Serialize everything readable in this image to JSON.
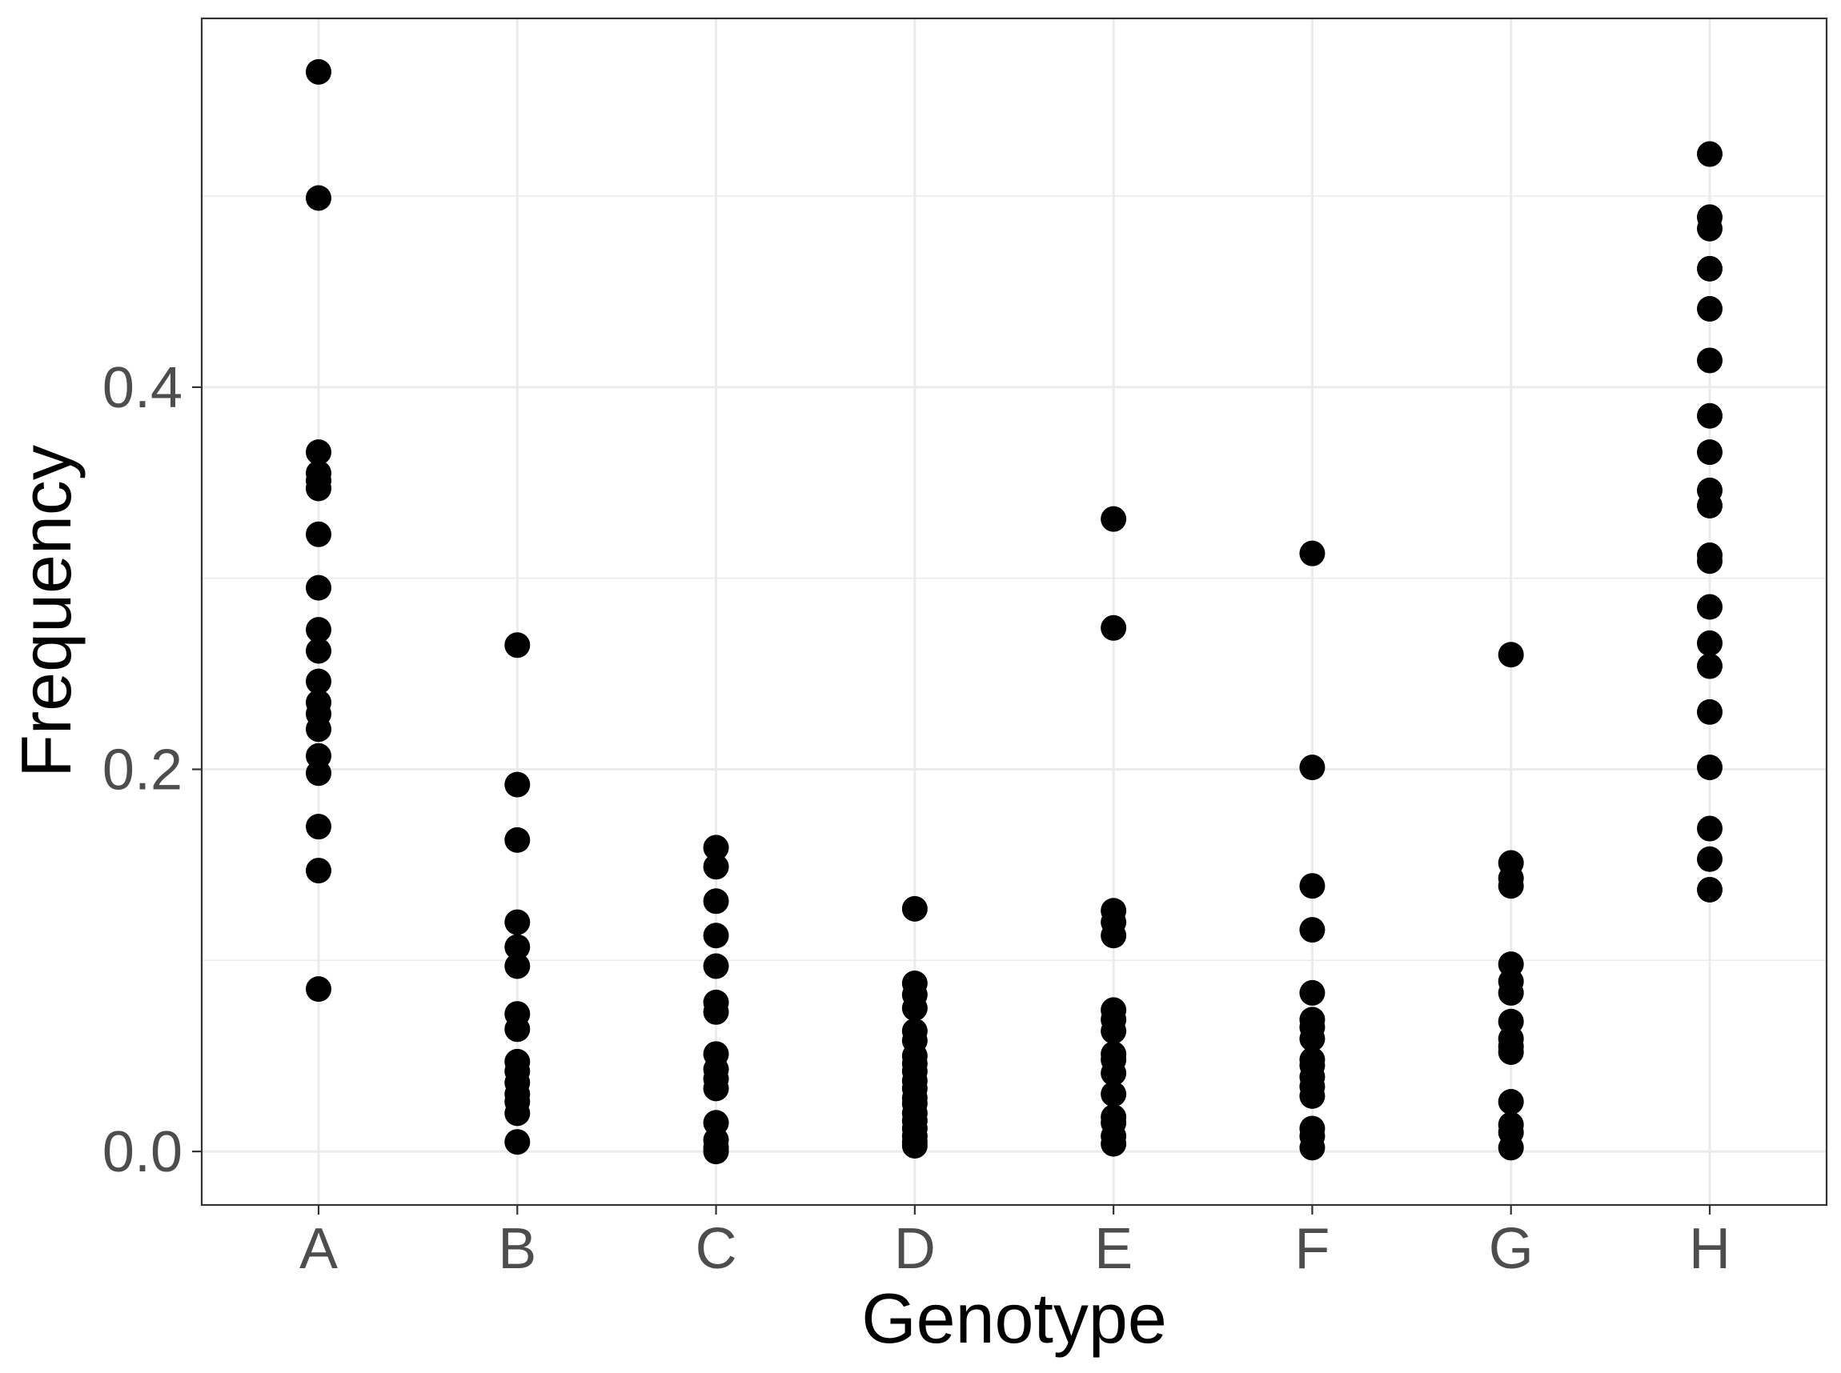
{
  "chart_data": {
    "type": "scatter",
    "title": "",
    "xlabel": "Genotype",
    "ylabel": "Frequency",
    "categories": [
      "A",
      "B",
      "C",
      "D",
      "E",
      "F",
      "G",
      "H"
    ],
    "ylim": [
      -0.028,
      0.593
    ],
    "yticks": [
      {
        "value": 0.0,
        "label": "0.0"
      },
      {
        "value": 0.2,
        "label": "0.2"
      },
      {
        "value": 0.4,
        "label": "0.4"
      }
    ],
    "minor_gridlines": [
      0.1,
      0.3,
      0.5
    ],
    "grid": true,
    "legend": "none",
    "point_color": "#000000",
    "points": {
      "A": [
        0.565,
        0.499,
        0.366,
        0.355,
        0.351,
        0.347,
        0.323,
        0.295,
        0.273,
        0.262,
        0.246,
        0.235,
        0.229,
        0.221,
        0.207,
        0.198,
        0.17,
        0.147,
        0.085
      ],
      "B": [
        0.265,
        0.192,
        0.163,
        0.12,
        0.107,
        0.097,
        0.072,
        0.064,
        0.047,
        0.042,
        0.036,
        0.03,
        0.026,
        0.02,
        0.005
      ],
      "C": [
        0.159,
        0.149,
        0.131,
        0.113,
        0.097,
        0.078,
        0.073,
        0.051,
        0.043,
        0.038,
        0.033,
        0.015,
        0.006,
        0.002,
        0.0
      ],
      "D": [
        0.127,
        0.088,
        0.082,
        0.075,
        0.063,
        0.058,
        0.05,
        0.046,
        0.042,
        0.037,
        0.033,
        0.028,
        0.025,
        0.02,
        0.016,
        0.012,
        0.008,
        0.005,
        0.003
      ],
      "E": [
        0.331,
        0.274,
        0.126,
        0.12,
        0.113,
        0.074,
        0.069,
        0.063,
        0.051,
        0.048,
        0.041,
        0.03,
        0.018,
        0.015,
        0.008,
        0.004
      ],
      "F": [
        0.313,
        0.201,
        0.139,
        0.116,
        0.083,
        0.069,
        0.065,
        0.059,
        0.048,
        0.045,
        0.039,
        0.034,
        0.029,
        0.012,
        0.008,
        0.002
      ],
      "G": [
        0.26,
        0.151,
        0.143,
        0.139,
        0.098,
        0.089,
        0.083,
        0.068,
        0.059,
        0.055,
        0.052,
        0.026,
        0.014,
        0.01,
        0.002
      ],
      "H": [
        0.522,
        0.489,
        0.483,
        0.462,
        0.441,
        0.414,
        0.385,
        0.366,
        0.346,
        0.338,
        0.312,
        0.309,
        0.285,
        0.266,
        0.254,
        0.23,
        0.201,
        0.169,
        0.153,
        0.137
      ]
    }
  }
}
